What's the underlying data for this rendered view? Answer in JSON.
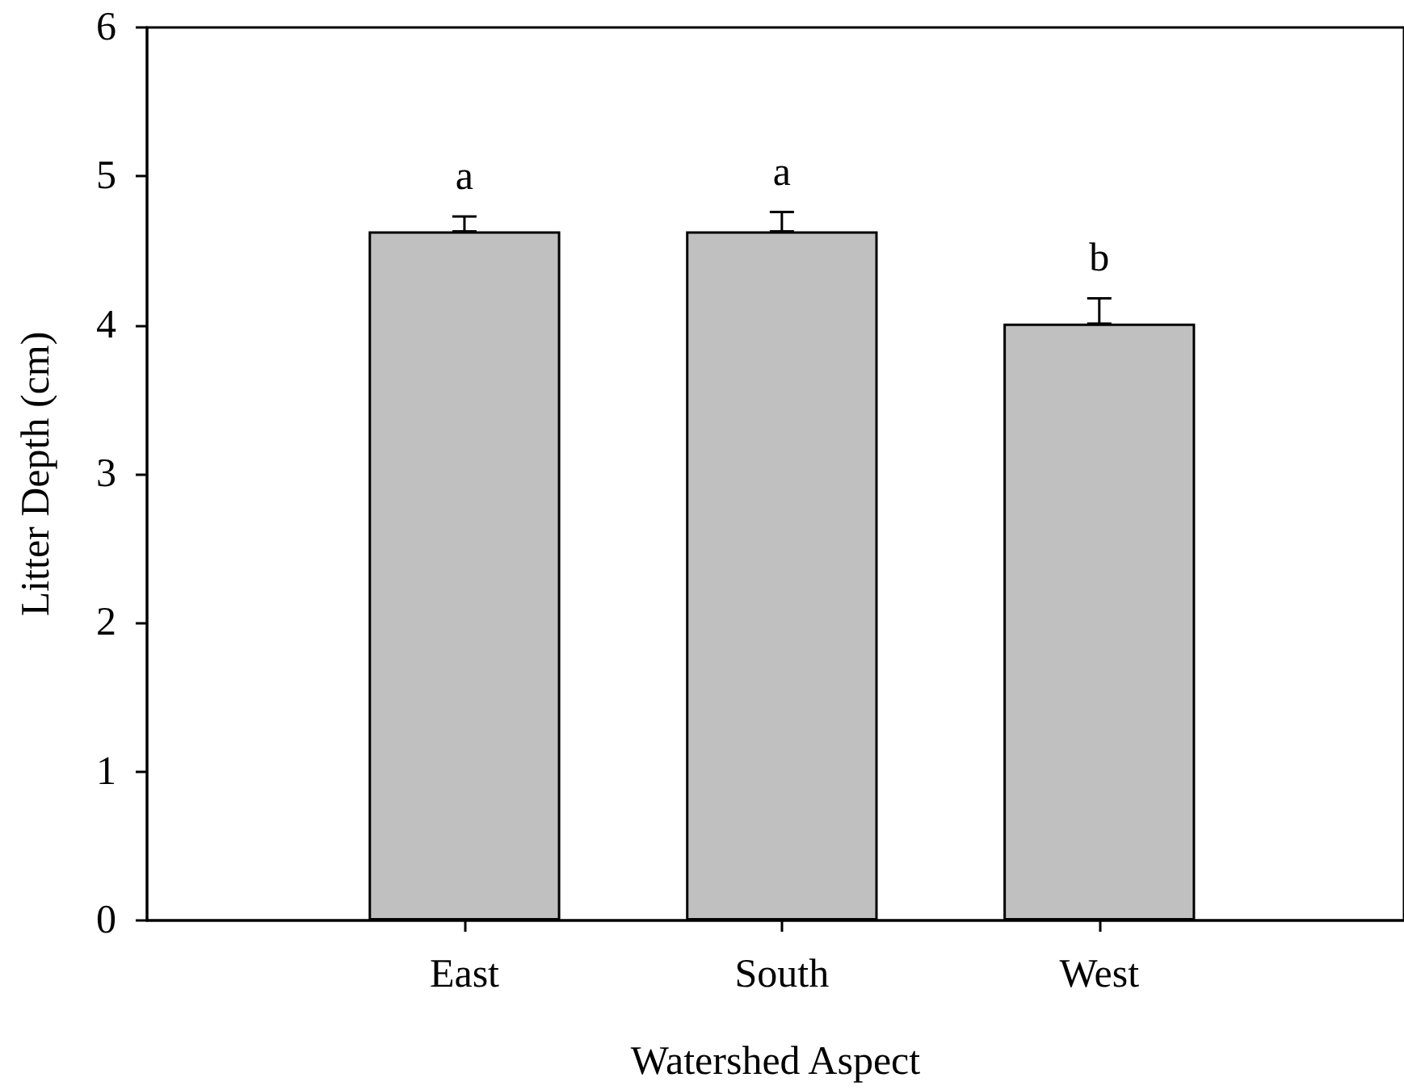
{
  "chart_data": {
    "type": "bar",
    "xlabel": "Watershed Aspect",
    "ylabel": "Litter Depth (cm)",
    "categories": [
      "East",
      "South",
      "West"
    ],
    "values": [
      4.63,
      4.63,
      4.01
    ],
    "errors": [
      [
        4.63,
        4.73
      ],
      [
        4.63,
        4.76
      ],
      [
        4.01,
        4.18
      ]
    ],
    "color": "#c0c0c0",
    "ylim": [
      0,
      6
    ],
    "yticks": [
      0,
      1,
      2,
      3,
      4,
      5,
      6
    ],
    "annotations": [
      {
        "text": "a",
        "x": "East",
        "y": 4.73
      },
      {
        "text": "a",
        "x": "South",
        "y": 4.76
      },
      {
        "text": "b",
        "x": "West",
        "y": 4.18
      }
    ]
  }
}
